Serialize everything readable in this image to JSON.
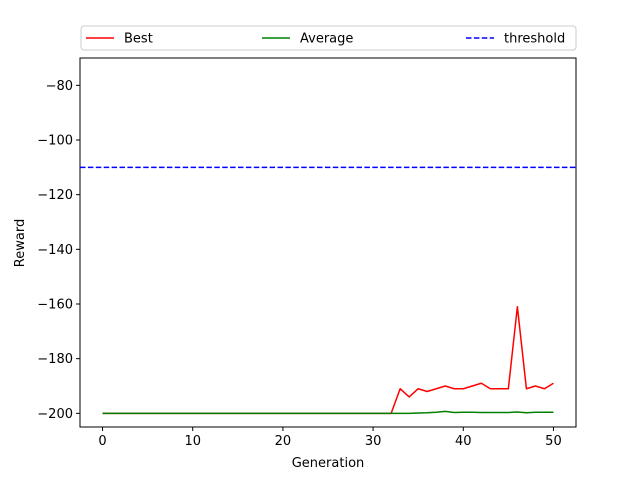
{
  "chart_data": {
    "type": "line",
    "title": "",
    "xlabel": "Generation",
    "ylabel": "Reward",
    "xlim": [
      -2.5,
      52.5
    ],
    "ylim": [
      -205,
      -70
    ],
    "xticks": [
      0,
      10,
      20,
      30,
      40,
      50
    ],
    "yticks": [
      -200,
      -180,
      -160,
      -140,
      -120,
      -100,
      -80
    ],
    "grid": false,
    "legend_position": "top, spanning width",
    "series": [
      {
        "name": "Best",
        "color": "#ff0000",
        "style": "solid",
        "x": [
          0,
          1,
          2,
          3,
          4,
          5,
          6,
          7,
          8,
          9,
          10,
          11,
          12,
          13,
          14,
          15,
          16,
          17,
          18,
          19,
          20,
          21,
          22,
          23,
          24,
          25,
          26,
          27,
          28,
          29,
          30,
          31,
          32,
          33,
          34,
          35,
          36,
          37,
          38,
          39,
          40,
          41,
          42,
          43,
          44,
          45,
          46,
          47,
          48,
          49,
          50
        ],
        "values": [
          -200,
          -200,
          -200,
          -200,
          -200,
          -200,
          -200,
          -200,
          -200,
          -200,
          -200,
          -200,
          -200,
          -200,
          -200,
          -200,
          -200,
          -200,
          -200,
          -200,
          -200,
          -200,
          -200,
          -200,
          -200,
          -200,
          -200,
          -200,
          -200,
          -200,
          -200,
          -200,
          -200,
          -191,
          -194,
          -191,
          -192,
          -191,
          -190,
          -191,
          -191,
          -190,
          -189,
          -191,
          -191,
          -191,
          -161,
          -191,
          -190,
          -191,
          -189
        ]
      },
      {
        "name": "Average",
        "color": "#008000",
        "style": "solid",
        "x": [
          0,
          1,
          2,
          3,
          4,
          5,
          6,
          7,
          8,
          9,
          10,
          11,
          12,
          13,
          14,
          15,
          16,
          17,
          18,
          19,
          20,
          21,
          22,
          23,
          24,
          25,
          26,
          27,
          28,
          29,
          30,
          31,
          32,
          33,
          34,
          35,
          36,
          37,
          38,
          39,
          40,
          41,
          42,
          43,
          44,
          45,
          46,
          47,
          48,
          49,
          50
        ],
        "values": [
          -200,
          -200,
          -200,
          -200,
          -200,
          -200,
          -200,
          -200,
          -200,
          -200,
          -200,
          -200,
          -200,
          -200,
          -200,
          -200,
          -200,
          -200,
          -200,
          -200,
          -200,
          -200,
          -200,
          -200,
          -200,
          -200,
          -200,
          -200,
          -200,
          -200,
          -200,
          -200,
          -200,
          -200,
          -200,
          -199.9,
          -199.8,
          -199.6,
          -199.3,
          -199.7,
          -199.6,
          -199.6,
          -199.7,
          -199.7,
          -199.7,
          -199.7,
          -199.5,
          -199.8,
          -199.6,
          -199.6,
          -199.6
        ]
      },
      {
        "name": "threshold",
        "color": "#0000ff",
        "style": "dashed",
        "x": [
          -2.5,
          52.5
        ],
        "values": [
          -110,
          -110
        ]
      }
    ]
  }
}
